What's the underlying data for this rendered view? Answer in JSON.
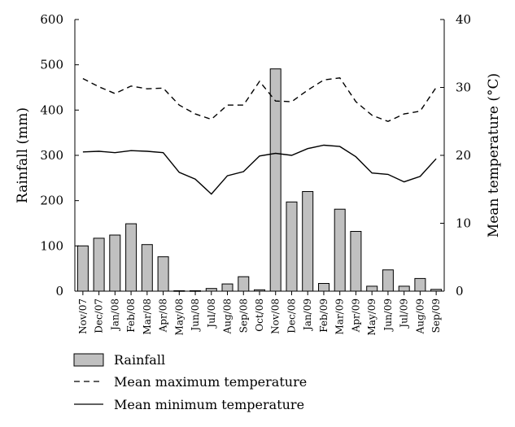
{
  "chart_data": {
    "type": "bar",
    "categories": [
      "Nov/07",
      "Dec/07",
      "Jan/08",
      "Feb/08",
      "Mar/08",
      "Apr/08",
      "May/08",
      "Jun/08",
      "Jul/08",
      "Aug/08",
      "Sep/08",
      "Oct/08",
      "Nov/08",
      "Dec/08",
      "Jan/09",
      "Feb/09",
      "Mar/09",
      "Apr/09",
      "May/09",
      "Jun/09",
      "Jul/09",
      "Aug/09",
      "Sep/09"
    ],
    "series": [
      {
        "name": "Rainfall",
        "type": "bar",
        "axis": "left",
        "color": "#c0c0c0",
        "values": [
          100,
          117,
          124,
          149,
          103,
          76,
          1,
          1,
          6,
          16,
          32,
          3,
          491,
          197,
          220,
          17,
          181,
          132,
          11,
          47,
          11,
          28,
          4
        ]
      },
      {
        "name": "Mean maximum temperature",
        "type": "line",
        "style": "dashed",
        "axis": "right",
        "values": [
          31.3,
          30.1,
          29.1,
          30.2,
          29.8,
          29.9,
          27.4,
          26.1,
          25.3,
          27.4,
          27.4,
          30.9,
          28.0,
          27.9,
          29.6,
          31.1,
          31.4,
          27.9,
          25.9,
          25.0,
          26.1,
          26.5,
          30.0
        ]
      },
      {
        "name": "Mean minimum temperature",
        "type": "line",
        "style": "solid",
        "axis": "right",
        "values": [
          20.5,
          20.6,
          20.4,
          20.7,
          20.6,
          20.4,
          17.5,
          16.5,
          14.3,
          17.0,
          17.6,
          19.9,
          20.3,
          20.0,
          21.0,
          21.5,
          21.3,
          19.8,
          17.4,
          17.2,
          16.1,
          16.9,
          19.5
        ]
      }
    ],
    "y_left": {
      "label": "Rainfall (mm)",
      "range": [
        0,
        600
      ],
      "ticks": [
        "0",
        "100",
        "200",
        "300",
        "400",
        "500",
        "600"
      ]
    },
    "y_right": {
      "label": "Mean temperature (°C)",
      "range": [
        0,
        40
      ],
      "ticks": [
        "0",
        "10",
        "20",
        "30",
        "40"
      ]
    },
    "legend": {
      "placement": "bottom",
      "items": [
        "Rainfall",
        "Mean maximum temperature",
        "Mean minimum temperature"
      ]
    },
    "grid": false
  }
}
